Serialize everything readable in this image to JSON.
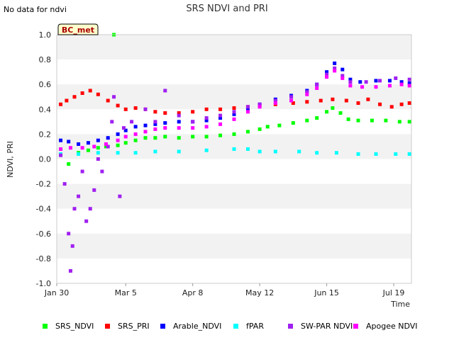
{
  "note": "No data for ndvi",
  "badge": "BC_met",
  "chart_data": {
    "type": "scatter",
    "title": "SRS NDVI and PRI",
    "xlabel": "Time",
    "ylabel": "NDVI, PRI",
    "ylim": [
      -1.0,
      1.0
    ],
    "xlim": [
      "2024-01-30",
      "2024-07-28"
    ],
    "yticks": [
      "-1.0",
      "-0.8",
      "-0.6",
      "-0.4",
      "-0.2",
      "0.0",
      "0.2",
      "0.4",
      "0.6",
      "0.8",
      "1.0"
    ],
    "xticks": [
      {
        "date": "2024-01-30",
        "label": "Jan 30"
      },
      {
        "date": "2024-03-05",
        "label": "Mar 5"
      },
      {
        "date": "2024-04-08",
        "label": "Apr 8"
      },
      {
        "date": "2024-05-12",
        "label": "May 12"
      },
      {
        "date": "2024-06-15",
        "label": "Jun 15"
      },
      {
        "date": "2024-07-19",
        "label": "Jul 19"
      }
    ],
    "grid": "horizontal bands",
    "legend_position": "bottom",
    "series": [
      {
        "name": "SRS_NDVI",
        "color": "#00ff00",
        "points": [
          [
            "2024-02-01",
            0.08
          ],
          [
            "2024-02-05",
            -0.04
          ],
          [
            "2024-02-10",
            0.05
          ],
          [
            "2024-02-15",
            0.07
          ],
          [
            "2024-02-20",
            0.09
          ],
          [
            "2024-02-24",
            0.1
          ],
          [
            "2024-02-28",
            1.0
          ],
          [
            "2024-03-01",
            0.11
          ],
          [
            "2024-03-05",
            0.13
          ],
          [
            "2024-03-10",
            0.15
          ],
          [
            "2024-03-15",
            0.17
          ],
          [
            "2024-03-20",
            0.17
          ],
          [
            "2024-03-25",
            0.18
          ],
          [
            "2024-04-01",
            0.17
          ],
          [
            "2024-04-08",
            0.18
          ],
          [
            "2024-04-15",
            0.18
          ],
          [
            "2024-04-22",
            0.19
          ],
          [
            "2024-04-29",
            0.2
          ],
          [
            "2024-05-06",
            0.22
          ],
          [
            "2024-05-12",
            0.24
          ],
          [
            "2024-05-16",
            0.26
          ],
          [
            "2024-05-22",
            0.27
          ],
          [
            "2024-05-29",
            0.29
          ],
          [
            "2024-06-05",
            0.31
          ],
          [
            "2024-06-10",
            0.33
          ],
          [
            "2024-06-15",
            0.38
          ],
          [
            "2024-06-18",
            0.41
          ],
          [
            "2024-06-22",
            0.37
          ],
          [
            "2024-06-26",
            0.32
          ],
          [
            "2024-07-01",
            0.31
          ],
          [
            "2024-07-08",
            0.31
          ],
          [
            "2024-07-15",
            0.31
          ],
          [
            "2024-07-22",
            0.3
          ],
          [
            "2024-07-27",
            0.3
          ]
        ]
      },
      {
        "name": "SRS_PRI",
        "color": "#ff0000",
        "points": [
          [
            "2024-02-01",
            0.44
          ],
          [
            "2024-02-04",
            0.47
          ],
          [
            "2024-02-08",
            0.5
          ],
          [
            "2024-02-12",
            0.53
          ],
          [
            "2024-02-16",
            0.55
          ],
          [
            "2024-02-20",
            0.52
          ],
          [
            "2024-02-25",
            0.47
          ],
          [
            "2024-03-01",
            0.43
          ],
          [
            "2024-03-05",
            0.4
          ],
          [
            "2024-03-10",
            0.41
          ],
          [
            "2024-03-15",
            0.4
          ],
          [
            "2024-03-20",
            0.38
          ],
          [
            "2024-03-25",
            0.37
          ],
          [
            "2024-04-01",
            0.37
          ],
          [
            "2024-04-08",
            0.38
          ],
          [
            "2024-04-15",
            0.4
          ],
          [
            "2024-04-22",
            0.4
          ],
          [
            "2024-04-29",
            0.41
          ],
          [
            "2024-05-06",
            0.42
          ],
          [
            "2024-05-12",
            0.43
          ],
          [
            "2024-05-20",
            0.44
          ],
          [
            "2024-05-29",
            0.45
          ],
          [
            "2024-06-05",
            0.46
          ],
          [
            "2024-06-12",
            0.47
          ],
          [
            "2024-06-18",
            0.48
          ],
          [
            "2024-06-25",
            0.47
          ],
          [
            "2024-07-01",
            0.45
          ],
          [
            "2024-07-06",
            0.48
          ],
          [
            "2024-07-12",
            0.44
          ],
          [
            "2024-07-18",
            0.42
          ],
          [
            "2024-07-23",
            0.44
          ],
          [
            "2024-07-27",
            0.45
          ]
        ]
      },
      {
        "name": "Arable_NDVI",
        "color": "#0000ff",
        "points": [
          [
            "2024-02-01",
            0.15
          ],
          [
            "2024-02-05",
            0.14
          ],
          [
            "2024-02-10",
            0.12
          ],
          [
            "2024-02-15",
            0.13
          ],
          [
            "2024-02-20",
            0.15
          ],
          [
            "2024-02-25",
            0.17
          ],
          [
            "2024-03-01",
            0.2
          ],
          [
            "2024-03-05",
            0.23
          ],
          [
            "2024-03-10",
            0.26
          ],
          [
            "2024-03-15",
            0.27
          ],
          [
            "2024-03-20",
            0.28
          ],
          [
            "2024-03-25",
            0.29
          ],
          [
            "2024-04-01",
            0.3
          ],
          [
            "2024-04-08",
            0.3
          ],
          [
            "2024-04-15",
            0.31
          ],
          [
            "2024-04-22",
            0.33
          ],
          [
            "2024-04-29",
            0.36
          ],
          [
            "2024-05-06",
            0.4
          ],
          [
            "2024-05-12",
            0.44
          ],
          [
            "2024-05-20",
            0.48
          ],
          [
            "2024-05-28",
            0.51
          ],
          [
            "2024-06-05",
            0.55
          ],
          [
            "2024-06-10",
            0.6
          ],
          [
            "2024-06-15",
            0.7
          ],
          [
            "2024-06-19",
            0.77
          ],
          [
            "2024-06-23",
            0.72
          ],
          [
            "2024-06-27",
            0.64
          ],
          [
            "2024-07-02",
            0.62
          ],
          [
            "2024-07-10",
            0.63
          ],
          [
            "2024-07-17",
            0.63
          ],
          [
            "2024-07-23",
            0.62
          ],
          [
            "2024-07-27",
            0.61
          ]
        ]
      },
      {
        "name": "fPAR",
        "color": "#00ffff",
        "points": [
          [
            "2024-02-01",
            0.04
          ],
          [
            "2024-02-10",
            0.04
          ],
          [
            "2024-02-20",
            0.05
          ],
          [
            "2024-03-01",
            0.05
          ],
          [
            "2024-03-10",
            0.05
          ],
          [
            "2024-03-20",
            0.06
          ],
          [
            "2024-04-01",
            0.06
          ],
          [
            "2024-04-15",
            0.07
          ],
          [
            "2024-04-29",
            0.08
          ],
          [
            "2024-05-06",
            0.08
          ],
          [
            "2024-05-12",
            0.06
          ],
          [
            "2024-05-20",
            0.06
          ],
          [
            "2024-06-01",
            0.06
          ],
          [
            "2024-06-10",
            0.05
          ],
          [
            "2024-06-20",
            0.05
          ],
          [
            "2024-07-01",
            0.04
          ],
          [
            "2024-07-10",
            0.04
          ],
          [
            "2024-07-20",
            0.04
          ],
          [
            "2024-07-27",
            0.04
          ]
        ]
      },
      {
        "name": "SW-PAR NDVI",
        "color": "#a020f0",
        "points": [
          [
            "2024-02-01",
            0.03
          ],
          [
            "2024-02-03",
            -0.2
          ],
          [
            "2024-02-05",
            -0.6
          ],
          [
            "2024-02-06",
            -0.9
          ],
          [
            "2024-02-07",
            -0.7
          ],
          [
            "2024-02-08",
            -0.4
          ],
          [
            "2024-02-10",
            -0.3
          ],
          [
            "2024-02-12",
            -0.1
          ],
          [
            "2024-02-14",
            -0.5
          ],
          [
            "2024-02-16",
            -0.4
          ],
          [
            "2024-02-18",
            -0.25
          ],
          [
            "2024-02-20",
            0.0
          ],
          [
            "2024-02-22",
            -0.1
          ],
          [
            "2024-02-25",
            0.1
          ],
          [
            "2024-02-27",
            0.3
          ],
          [
            "2024-02-28",
            0.5
          ],
          [
            "2024-03-02",
            -0.3
          ],
          [
            "2024-03-04",
            0.25
          ],
          [
            "2024-03-08",
            0.3
          ],
          [
            "2024-03-15",
            0.4
          ],
          [
            "2024-03-20",
            0.3
          ],
          [
            "2024-03-25",
            0.55
          ],
          [
            "2024-04-01",
            0.35
          ],
          [
            "2024-04-08",
            0.3
          ],
          [
            "2024-04-15",
            0.33
          ],
          [
            "2024-04-22",
            0.35
          ],
          [
            "2024-04-29",
            0.38
          ],
          [
            "2024-05-06",
            0.42
          ],
          [
            "2024-05-12",
            0.44
          ],
          [
            "2024-05-20",
            0.47
          ],
          [
            "2024-05-28",
            0.5
          ],
          [
            "2024-06-05",
            0.54
          ],
          [
            "2024-06-10",
            0.6
          ],
          [
            "2024-06-15",
            0.68
          ],
          [
            "2024-06-19",
            0.73
          ],
          [
            "2024-06-23",
            0.67
          ],
          [
            "2024-06-27",
            0.62
          ],
          [
            "2024-07-05",
            0.62
          ],
          [
            "2024-07-12",
            0.63
          ],
          [
            "2024-07-20",
            0.65
          ],
          [
            "2024-07-27",
            0.64
          ]
        ]
      },
      {
        "name": "Apogee NDVI",
        "color": "#ff00ff",
        "points": [
          [
            "2024-02-01",
            0.08
          ],
          [
            "2024-02-06",
            0.09
          ],
          [
            "2024-02-12",
            0.09
          ],
          [
            "2024-02-18",
            0.1
          ],
          [
            "2024-02-24",
            0.12
          ],
          [
            "2024-03-01",
            0.15
          ],
          [
            "2024-03-05",
            0.18
          ],
          [
            "2024-03-10",
            0.2
          ],
          [
            "2024-03-15",
            0.22
          ],
          [
            "2024-03-20",
            0.24
          ],
          [
            "2024-03-25",
            0.25
          ],
          [
            "2024-04-01",
            0.25
          ],
          [
            "2024-04-08",
            0.25
          ],
          [
            "2024-04-15",
            0.26
          ],
          [
            "2024-04-22",
            0.28
          ],
          [
            "2024-04-29",
            0.32
          ],
          [
            "2024-05-06",
            0.38
          ],
          [
            "2024-05-12",
            0.42
          ],
          [
            "2024-05-20",
            0.45
          ],
          [
            "2024-05-28",
            0.47
          ],
          [
            "2024-06-05",
            0.52
          ],
          [
            "2024-06-10",
            0.57
          ],
          [
            "2024-06-15",
            0.66
          ],
          [
            "2024-06-19",
            0.71
          ],
          [
            "2024-06-23",
            0.65
          ],
          [
            "2024-06-27",
            0.59
          ],
          [
            "2024-07-03",
            0.58
          ],
          [
            "2024-07-10",
            0.58
          ],
          [
            "2024-07-17",
            0.59
          ],
          [
            "2024-07-23",
            0.6
          ],
          [
            "2024-07-27",
            0.59
          ]
        ]
      }
    ]
  }
}
